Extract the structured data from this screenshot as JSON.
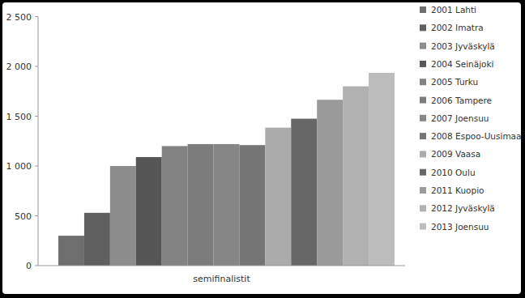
{
  "chart_data": {
    "type": "bar",
    "categories": [
      "semifinalistit"
    ],
    "series": [
      {
        "name": "2001 Lahti",
        "color": "#6e6e6e",
        "values": [
          300
        ]
      },
      {
        "name": "2002 Imatra",
        "color": "#5f5f5f",
        "values": [
          530
        ]
      },
      {
        "name": "2003 Jyväskylä",
        "color": "#8d8d8d",
        "values": [
          1000
        ]
      },
      {
        "name": "2004 Seinäjoki",
        "color": "#565656",
        "values": [
          1090
        ]
      },
      {
        "name": "2005 Turku",
        "color": "#828282",
        "values": [
          1200
        ]
      },
      {
        "name": "2006 Tampere",
        "color": "#7c7c7c",
        "values": [
          1220
        ]
      },
      {
        "name": "2007 Joensuu",
        "color": "#868686",
        "values": [
          1220
        ]
      },
      {
        "name": "2008 Espoo-Uusimaa",
        "color": "#757575",
        "values": [
          1210
        ]
      },
      {
        "name": "2009 Vaasa",
        "color": "#ababab",
        "values": [
          1385
        ]
      },
      {
        "name": "2010 Oulu",
        "color": "#676767",
        "values": [
          1475
        ]
      },
      {
        "name": "2011 Kuopio",
        "color": "#9a9a9a",
        "values": [
          1665
        ]
      },
      {
        "name": "2012 Jyväskylä",
        "color": "#b1b1b1",
        "values": [
          1800
        ]
      },
      {
        "name": "2013 Joensuu",
        "color": "#bcbcbc",
        "values": [
          1935
        ]
      }
    ],
    "ylim": [
      0,
      2500
    ],
    "yticks": [
      0,
      500,
      {
        "value": 1000,
        "label": "1 000"
      },
      {
        "value": 1500,
        "label": "1 500"
      },
      {
        "value": 2000,
        "label": "2 000"
      },
      {
        "value": 2500,
        "label": "2 500"
      }
    ],
    "grid": false,
    "legend": "right"
  }
}
